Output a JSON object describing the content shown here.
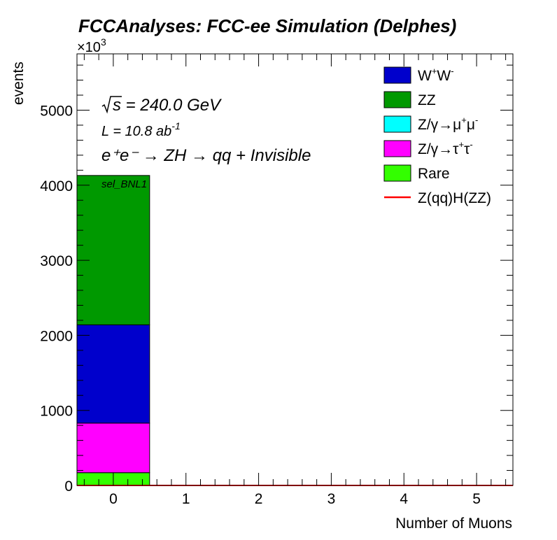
{
  "chart_data": {
    "type": "bar",
    "stacked": true,
    "title": "FCCAnalyses: FCC-ee Simulation (Delphes)",
    "xlabel": "Number of Muons",
    "ylabel": "events",
    "y_multiplier": "×10",
    "y_multiplier_exp": "3",
    "xlim": [
      -0.5,
      5.5
    ],
    "ylim": [
      0,
      5750
    ],
    "x_ticks": [
      0,
      1,
      2,
      3,
      4,
      5
    ],
    "y_ticks": [
      0,
      1000,
      2000,
      3000,
      4000,
      5000
    ],
    "categories": [
      0,
      1,
      2,
      3,
      4,
      5
    ],
    "series": [
      {
        "name": "Rare",
        "color": "#33ff00",
        "values": [
          170,
          0,
          0,
          0,
          0,
          0
        ]
      },
      {
        "name": "Z/γ→τ⁺τ⁻",
        "color": "#ff00ff",
        "values": [
          660,
          0,
          0,
          0,
          0,
          0
        ]
      },
      {
        "name": "Z/γ→μ⁺μ⁻",
        "color": "#00ffff",
        "values": [
          0,
          0,
          0,
          0,
          0,
          0
        ]
      },
      {
        "name": "W⁺W⁻",
        "color": "#0000cc",
        "values": [
          1310,
          0,
          0,
          0,
          0,
          0
        ]
      },
      {
        "name": "ZZ",
        "color": "#009900",
        "values": [
          1990,
          0,
          0,
          0,
          0,
          0
        ]
      }
    ],
    "signal": {
      "name": "Z(qq)H(ZZ)",
      "color": "#ff0000",
      "values": [
        0,
        0,
        0,
        0,
        0,
        0
      ]
    },
    "legend": {
      "placement": "top-right",
      "entries": [
        {
          "label_main": "W",
          "sup1": "+",
          "label_mid": "W",
          "sup2": "-",
          "color": "#0000cc",
          "kind": "box"
        },
        {
          "label_main": "ZZ",
          "color": "#009900",
          "kind": "box"
        },
        {
          "label_main": "Z/γ→μ",
          "sup1": "+",
          "label_mid": "μ",
          "sup2": "-",
          "color": "#00ffff",
          "kind": "box"
        },
        {
          "label_main": "Z/γ→τ",
          "sup1": "+",
          "label_mid": "τ",
          "sup2": "-",
          "color": "#ff00ff",
          "kind": "box"
        },
        {
          "label_main": "Rare",
          "color": "#33ff00",
          "kind": "box"
        },
        {
          "label_main": "Z(qq)H(ZZ)",
          "color": "#ff0000",
          "kind": "line"
        }
      ]
    },
    "annotations": {
      "sqrt_s": "s = 240.0 GeV",
      "lumi_main": "L = 10.8 ab",
      "lumi_exp": "-1",
      "process": "e⁺e⁻ → ZH → qq + Invisible",
      "selection": "sel_BNL1"
    }
  }
}
